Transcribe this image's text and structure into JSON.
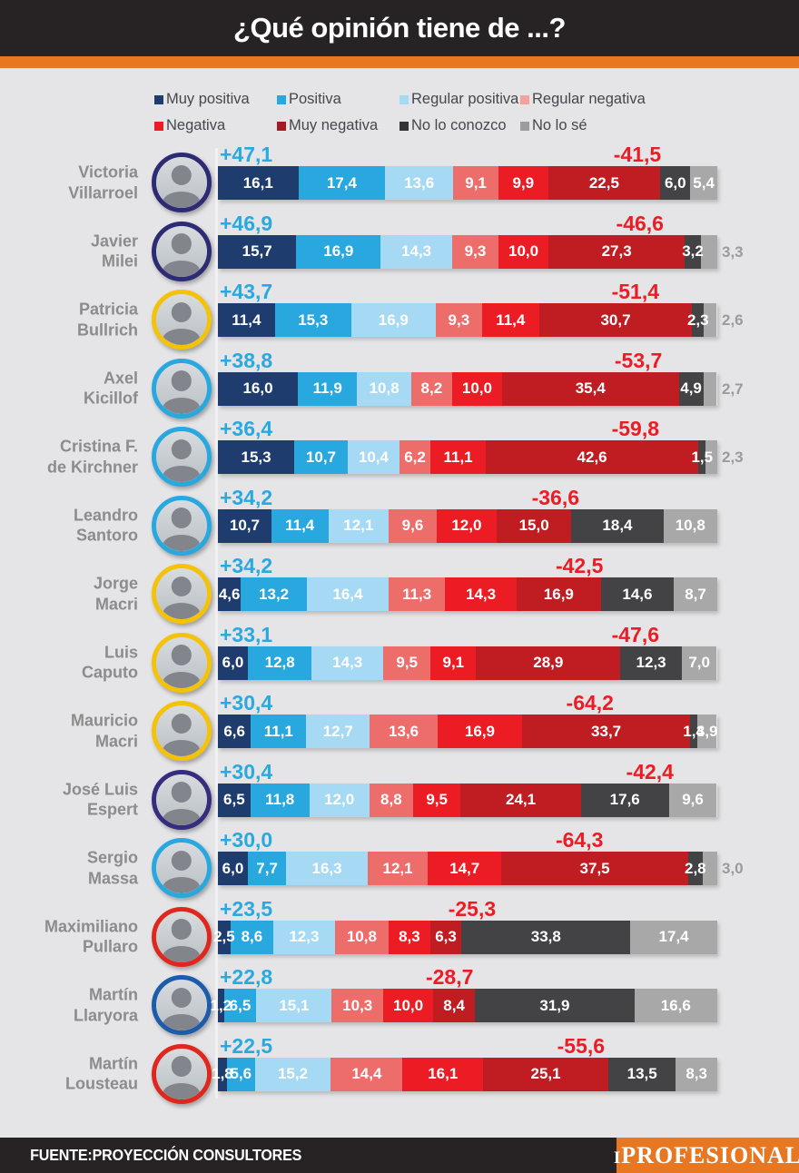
{
  "header": {
    "title": "¿Qué opinión tiene de ...?"
  },
  "legend": {
    "items": [
      {
        "label": "Muy positiva",
        "color": "#1e3c6e"
      },
      {
        "label": "Positiva",
        "color": "#29a8e0"
      },
      {
        "label": "Regular positiva",
        "color": "#a6d9f4"
      },
      {
        "label": "Regular negativa",
        "color": "#f2a19e"
      },
      {
        "label": "Negativa",
        "color": "#ec1c24"
      },
      {
        "label": "Muy negativa",
        "color": "#a6191f"
      },
      {
        "label": "No lo conozco",
        "color": "#333336"
      },
      {
        "label": "No lo sé",
        "color": "#9c9c9c"
      }
    ]
  },
  "chart_data": {
    "type": "bar",
    "stacked": true,
    "orientation": "horizontal",
    "unit": "%",
    "title": "¿Qué opinión tiene de ...?",
    "xlim": [
      0,
      100
    ],
    "legend_position": "top",
    "categories": [
      "Muy positiva",
      "Positiva",
      "Regular positiva",
      "Regular negativa",
      "Negativa",
      "Muy negativa",
      "No lo conozco",
      "No lo sé"
    ],
    "category_colors": [
      "#1e3c6e",
      "#29a8e0",
      "#a6d9f4",
      "#ed6d6a",
      "#ec1c24",
      "#c01d23",
      "#434345",
      "#a8a8a8"
    ],
    "rows": [
      {
        "name": [
          "Victoria",
          "Villarroel"
        ],
        "ring_color": "#2e2b75",
        "positive_label": "+47,1",
        "negative_label": "-41,5",
        "neg_label_pct": 84.0,
        "values": [
          16.1,
          17.4,
          13.6,
          9.1,
          9.9,
          22.5,
          6.0,
          5.4
        ],
        "value_labels": [
          "16,1",
          "17,4",
          "13,6",
          "9,1",
          "9,9",
          "22,5",
          "6,0",
          "5,4"
        ],
        "outside_last": false
      },
      {
        "name": [
          "Javier",
          "Milei"
        ],
        "ring_color": "#2e2b75",
        "positive_label": "+46,9",
        "negative_label": "-46,6",
        "neg_label_pct": 84.5,
        "values": [
          15.7,
          16.9,
          14.3,
          9.3,
          10.0,
          27.3,
          3.2,
          3.3
        ],
        "value_labels": [
          "15,7",
          "16,9",
          "14,3",
          "9,3",
          "10,0",
          "27,3",
          "3,2",
          "3,3"
        ],
        "outside_last": true
      },
      {
        "name": [
          "Patricia",
          "Bullrich"
        ],
        "ring_color": "#f5c20a",
        "positive_label": "+43,7",
        "negative_label": "-51,4",
        "neg_label_pct": 83.6,
        "values": [
          11.4,
          15.3,
          16.9,
          9.3,
          11.4,
          30.7,
          2.3,
          2.6
        ],
        "value_labels": [
          "11,4",
          "15,3",
          "16,9",
          "9,3",
          "11,4",
          "30,7",
          "2,3",
          "2,6"
        ],
        "outside_last": true
      },
      {
        "name": [
          "Axel",
          "Kicillof"
        ],
        "ring_color": "#29a8e0",
        "positive_label": "+38,8",
        "negative_label": "-53,7",
        "neg_label_pct": 84.2,
        "values": [
          16.0,
          11.9,
          10.8,
          8.2,
          10.0,
          35.4,
          4.9,
          2.7
        ],
        "value_labels": [
          "16,0",
          "11,9",
          "10,8",
          "8,2",
          "10,0",
          "35,4",
          "4,9",
          "2,7"
        ],
        "outside_last": true
      },
      {
        "name": [
          "Cristina F.",
          "de Kirchner"
        ],
        "ring_color": "#29a8e0",
        "positive_label": "+36,4",
        "negative_label": "-59,8",
        "neg_label_pct": 83.6,
        "values": [
          15.3,
          10.7,
          10.4,
          6.2,
          11.1,
          42.6,
          1.5,
          2.3
        ],
        "value_labels": [
          "15,3",
          "10,7",
          "10,4",
          "6,2",
          "11,1",
          "42,6",
          "1,5",
          "2,3"
        ],
        "outside_last": true
      },
      {
        "name": [
          "Leandro",
          "Santoro"
        ],
        "ring_color": "#29a8e0",
        "positive_label": "+34,2",
        "negative_label": "-36,6",
        "neg_label_pct": 67.6,
        "values": [
          10.7,
          11.4,
          12.1,
          9.6,
          12.0,
          15.0,
          18.4,
          10.8
        ],
        "value_labels": [
          "10,7",
          "11,4",
          "12,1",
          "9,6",
          "12,0",
          "15,0",
          "18,4",
          "10,8"
        ],
        "outside_last": false
      },
      {
        "name": [
          "Jorge",
          "Macri"
        ],
        "ring_color": "#f5c20a",
        "positive_label": "+34,2",
        "negative_label": "-42,5",
        "neg_label_pct": 72.4,
        "values": [
          4.6,
          13.2,
          16.4,
          11.3,
          14.3,
          16.9,
          14.6,
          8.7
        ],
        "value_labels": [
          "4,6",
          "13,2",
          "16,4",
          "11,3",
          "14,3",
          "16,9",
          "14,6",
          "8,7"
        ],
        "outside_last": false
      },
      {
        "name": [
          "Luis",
          "Caputo"
        ],
        "ring_color": "#f5c20a",
        "positive_label": "+33,1",
        "negative_label": "-47,6",
        "neg_label_pct": 83.6,
        "values": [
          6.0,
          12.8,
          14.3,
          9.5,
          9.1,
          28.9,
          12.3,
          7.0
        ],
        "value_labels": [
          "6,0",
          "12,8",
          "14,3",
          "9,5",
          "9,1",
          "28,9",
          "12,3",
          "7,0"
        ],
        "outside_last": false
      },
      {
        "name": [
          "Mauricio",
          "Macri"
        ],
        "ring_color": "#f5c20a",
        "positive_label": "+30,4",
        "negative_label": "-64,2",
        "neg_label_pct": 74.5,
        "values": [
          6.6,
          11.1,
          12.7,
          13.6,
          16.9,
          33.7,
          1.4,
          3.9
        ],
        "value_labels": [
          "6,6",
          "11,1",
          "12,7",
          "13,6",
          "16,9",
          "33,7",
          "1,4",
          "3,9"
        ],
        "outside_last": false
      },
      {
        "name": [
          "José Luis",
          "Espert"
        ],
        "ring_color": "#352e7e",
        "positive_label": "+30,4",
        "negative_label": "-42,4",
        "neg_label_pct": 86.5,
        "values": [
          6.5,
          11.8,
          12.0,
          8.8,
          9.5,
          24.1,
          17.6,
          9.6
        ],
        "value_labels": [
          "6,5",
          "11,8",
          "12,0",
          "8,8",
          "9,5",
          "24,1",
          "17,6",
          "9,6"
        ],
        "outside_last": false
      },
      {
        "name": [
          "Sergio",
          "Massa"
        ],
        "ring_color": "#29a8e0",
        "positive_label": "+30,0",
        "negative_label": "-64,3",
        "neg_label_pct": 72.4,
        "values": [
          6.0,
          7.7,
          16.3,
          12.1,
          14.7,
          37.5,
          2.8,
          3.0
        ],
        "value_labels": [
          "6,0",
          "7,7",
          "16,3",
          "12,1",
          "14,7",
          "37,5",
          "2,8",
          "3,0"
        ],
        "outside_last": true
      },
      {
        "name": [
          "Maximiliano",
          "Pullaro"
        ],
        "ring_color": "#e0271d",
        "positive_label": "+23,5",
        "negative_label": "-25,3",
        "neg_label_pct": 50.9,
        "values": [
          2.5,
          8.6,
          12.3,
          10.8,
          8.3,
          6.3,
          33.8,
          17.4
        ],
        "value_labels": [
          "2,5",
          "8,6",
          "12,3",
          "10,8",
          "8,3",
          "6,3",
          "33,8",
          "17,4"
        ],
        "outside_last": false
      },
      {
        "name": [
          "Martín",
          "Llaryora"
        ],
        "ring_color": "#1d5cab",
        "positive_label": "+22,8",
        "negative_label": "-28,7",
        "neg_label_pct": 46.4,
        "values": [
          1.2,
          6.5,
          15.1,
          10.3,
          10.0,
          8.4,
          31.9,
          16.6
        ],
        "value_labels": [
          "1,2",
          "6,5",
          "15,1",
          "10,3",
          "10,0",
          "8,4",
          "31,9",
          "16,6"
        ],
        "outside_last": false
      },
      {
        "name": [
          "Martín",
          "Lousteau"
        ],
        "ring_color": "#e0271d",
        "positive_label": "+22,5",
        "negative_label": "-55,6",
        "neg_label_pct": 72.7,
        "values": [
          1.8,
          5.6,
          15.2,
          14.4,
          16.1,
          25.1,
          13.5,
          8.3
        ],
        "value_labels": [
          "1,8",
          "5,6",
          "15,2",
          "14,4",
          "16,1",
          "25,1",
          "13,5",
          "8,3"
        ],
        "outside_last": false
      }
    ]
  },
  "footer": {
    "source": "FUENTE:PROYECCIÓN CONSULTORES",
    "logo_prefix": "i",
    "logo_text": "PROFESIONAL"
  },
  "colors": {
    "background": "#e5e4e6",
    "header_bg": "#272223",
    "accent_orange": "#e87722",
    "positive_score": "#2aa9e1",
    "negative_score": "#ec1c24",
    "name_text": "#8c8c8c",
    "outside_value_text": "#9b9b9b"
  }
}
